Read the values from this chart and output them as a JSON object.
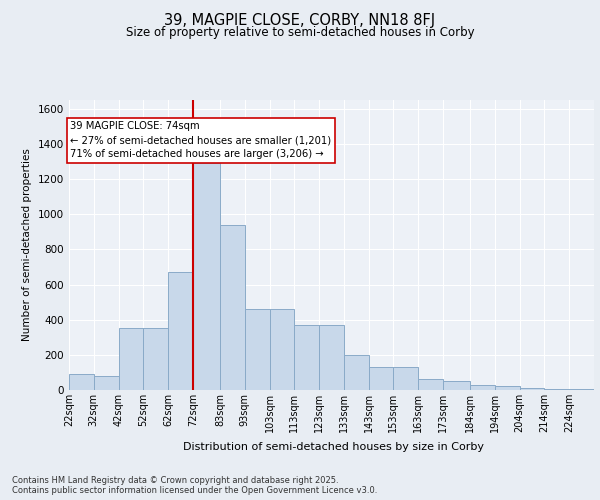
{
  "title": "39, MAGPIE CLOSE, CORBY, NN18 8FJ",
  "subtitle": "Size of property relative to semi-detached houses in Corby",
  "xlabel": "Distribution of semi-detached houses by size in Corby",
  "ylabel": "Number of semi-detached properties",
  "bin_labels": [
    "22sqm",
    "32sqm",
    "42sqm",
    "52sqm",
    "62sqm",
    "72sqm",
    "83sqm",
    "93sqm",
    "103sqm",
    "113sqm",
    "123sqm",
    "133sqm",
    "143sqm",
    "153sqm",
    "163sqm",
    "173sqm",
    "184sqm",
    "194sqm",
    "204sqm",
    "214sqm",
    "224sqm"
  ],
  "bar_heights": [
    90,
    80,
    350,
    350,
    670,
    1290,
    940,
    460,
    460,
    370,
    370,
    200,
    130,
    130,
    60,
    50,
    30,
    20,
    10,
    5,
    3
  ],
  "bar_color": "#c8d8ea",
  "bar_edge_color": "#8aaac8",
  "vline_x": 72,
  "vline_color": "#cc0000",
  "annotation_text": "39 MAGPIE CLOSE: 74sqm\n← 27% of semi-detached houses are smaller (1,201)\n71% of semi-detached houses are larger (3,206) →",
  "annotation_box_facecolor": "#ffffff",
  "annotation_box_edgecolor": "#cc0000",
  "ylim": [
    0,
    1650
  ],
  "yticks": [
    0,
    200,
    400,
    600,
    800,
    1000,
    1200,
    1400,
    1600
  ],
  "footnote": "Contains HM Land Registry data © Crown copyright and database right 2025.\nContains public sector information licensed under the Open Government Licence v3.0.",
  "bg_color": "#e8edf3",
  "plot_bg_color": "#edf1f7",
  "grid_color": "#ffffff",
  "bin_starts": [
    22,
    32,
    42,
    52,
    62,
    72,
    83,
    93,
    103,
    113,
    123,
    133,
    143,
    153,
    163,
    173,
    184,
    194,
    204,
    214,
    224
  ],
  "bin_ends": [
    32,
    42,
    52,
    62,
    72,
    83,
    93,
    103,
    113,
    123,
    133,
    143,
    153,
    163,
    173,
    184,
    194,
    204,
    214,
    224,
    234
  ]
}
